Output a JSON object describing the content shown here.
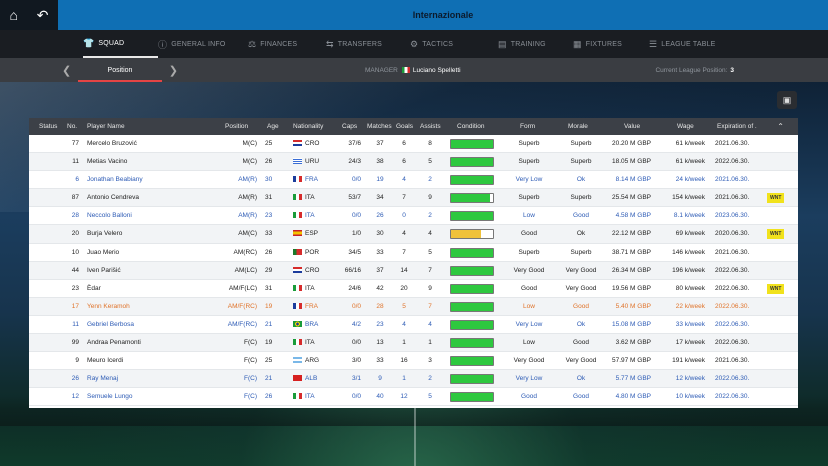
{
  "header": {
    "title": "Internazionale",
    "home_icon": "home-icon",
    "back_icon": "back-icon"
  },
  "tabs": [
    {
      "label": "SQUAD",
      "icon": "shirt-icon",
      "active": true
    },
    {
      "label": "GENERAL INFO",
      "icon": "info-icon"
    },
    {
      "label": "FINANCES",
      "icon": "finances-icon"
    },
    {
      "label": "TRANSFERS",
      "icon": "transfers-icon"
    },
    {
      "label": "TACTICS",
      "icon": "tactics-icon"
    },
    {
      "label": "TRAINING",
      "icon": "training-icon"
    },
    {
      "label": "FIXTURES",
      "icon": "fixtures-icon"
    },
    {
      "label": "LEAGUE TABLE",
      "icon": "league-table-icon"
    }
  ],
  "subbar": {
    "sort_label": "Position",
    "manager_key": "MANAGER",
    "manager_name": "Luciano Spelletti",
    "league_key": "Current League Position:",
    "league_value": "3"
  },
  "columns": [
    "Status",
    "No.",
    "Player Name",
    "Position",
    "Age",
    "Nationality",
    "Caps",
    "Matches",
    "Goals",
    "Assists",
    "Condition",
    "Form",
    "Morale",
    "Value",
    "Wage",
    "Expiration of ."
  ],
  "players": [
    {
      "no": "77",
      "name": "Mercelo Bruzović",
      "pos": "M(C)",
      "age": "25",
      "nat": "CRO",
      "caps": "37/6",
      "matches": "37",
      "goals": "6",
      "assists": "8",
      "cond": 1.0,
      "form": "Superb",
      "morale": "Superb",
      "value": "20.20 M GBP",
      "wage": "61 k/week",
      "exp": "2021.06.30.",
      "style": "normal",
      "badge": ""
    },
    {
      "no": "11",
      "name": "Metias Vacino",
      "pos": "M(C)",
      "age": "26",
      "nat": "URU",
      "caps": "24/3",
      "matches": "38",
      "goals": "6",
      "assists": "5",
      "cond": 1.0,
      "form": "Superb",
      "morale": "Superb",
      "value": "18.05 M GBP",
      "wage": "61 k/week",
      "exp": "2022.06.30.",
      "style": "normal",
      "badge": ""
    },
    {
      "no": "6",
      "name": "Jonathan Beabiany",
      "pos": "AM(R)",
      "age": "30",
      "nat": "FRA",
      "caps": "0/0",
      "matches": "19",
      "goals": "4",
      "assists": "2",
      "cond": 1.0,
      "form": "Very Low",
      "morale": "Ok",
      "value": "8.14 M GBP",
      "wage": "24 k/week",
      "exp": "2021.06.30.",
      "style": "blue",
      "badge": ""
    },
    {
      "no": "87",
      "name": "Antonio Cendreva",
      "pos": "AM(R)",
      "age": "31",
      "nat": "ITA",
      "caps": "53/7",
      "matches": "34",
      "goals": "7",
      "assists": "9",
      "cond": 0.92,
      "form": "Superb",
      "morale": "Superb",
      "value": "25.54 M GBP",
      "wage": "154 k/week",
      "exp": "2021.06.30.",
      "style": "normal",
      "badge": "WNT"
    },
    {
      "no": "28",
      "name": "Neccolo Balloni",
      "pos": "AM(R)",
      "age": "23",
      "nat": "ITA",
      "caps": "0/0",
      "matches": "26",
      "goals": "0",
      "assists": "2",
      "cond": 1.0,
      "form": "Low",
      "morale": "Good",
      "value": "4.58 M GBP",
      "wage": "8.1 k/week",
      "exp": "2023.06.30.",
      "style": "blue",
      "badge": ""
    },
    {
      "no": "20",
      "name": "Burja Velero",
      "pos": "AM(C)",
      "age": "33",
      "nat": "ESP",
      "caps": "1/0",
      "matches": "30",
      "goals": "4",
      "assists": "4",
      "cond": 0.72,
      "form": "Good",
      "morale": "Ok",
      "value": "22.12 M GBP",
      "wage": "69 k/week",
      "exp": "2020.06.30.",
      "style": "normal",
      "badge": "WNT"
    },
    {
      "no": "10",
      "name": "Juao Merio",
      "pos": "AM(RC)",
      "age": "26",
      "nat": "POR",
      "caps": "34/5",
      "matches": "33",
      "goals": "7",
      "assists": "5",
      "cond": 1.0,
      "form": "Superb",
      "morale": "Superb",
      "value": "38.71 M GBP",
      "wage": "146 k/week",
      "exp": "2021.06.30.",
      "style": "normal",
      "badge": ""
    },
    {
      "no": "44",
      "name": "Iven Parišić",
      "pos": "AM(LC)",
      "age": "29",
      "nat": "CRO",
      "caps": "66/16",
      "matches": "37",
      "goals": "14",
      "assists": "7",
      "cond": 1.0,
      "form": "Very Good",
      "morale": "Very Good",
      "value": "26.34 M GBP",
      "wage": "196 k/week",
      "exp": "2022.06.30.",
      "style": "normal",
      "badge": ""
    },
    {
      "no": "23",
      "name": "Èdar",
      "pos": "AM/F(LC)",
      "age": "31",
      "nat": "ITA",
      "caps": "24/6",
      "matches": "42",
      "goals": "20",
      "assists": "9",
      "cond": 1.0,
      "form": "Good",
      "morale": "Very Good",
      "value": "19.56 M GBP",
      "wage": "80 k/week",
      "exp": "2022.06.30.",
      "style": "normal",
      "badge": "WNT"
    },
    {
      "no": "17",
      "name": "Yenn Keramoh",
      "pos": "AM/F(RC)",
      "age": "19",
      "nat": "FRA",
      "caps": "0/0",
      "matches": "28",
      "goals": "5",
      "assists": "7",
      "cond": 1.0,
      "form": "Low",
      "morale": "Good",
      "value": "5.40 M GBP",
      "wage": "22 k/week",
      "exp": "2022.06.30.",
      "style": "orange",
      "badge": ""
    },
    {
      "no": "11",
      "name": "Gebriel Berbosa",
      "pos": "AM/F(RC)",
      "age": "21",
      "nat": "BRA",
      "caps": "4/2",
      "matches": "23",
      "goals": "4",
      "assists": "4",
      "cond": 1.0,
      "form": "Very Low",
      "morale": "Ok",
      "value": "15.08 M GBP",
      "wage": "33 k/week",
      "exp": "2022.06.30.",
      "style": "blue",
      "badge": ""
    },
    {
      "no": "99",
      "name": "Andraa Penamonti",
      "pos": "F(C)",
      "age": "19",
      "nat": "ITA",
      "caps": "0/0",
      "matches": "13",
      "goals": "1",
      "assists": "1",
      "cond": 1.0,
      "form": "Low",
      "morale": "Good",
      "value": "3.62 M GBP",
      "wage": "17 k/week",
      "exp": "2022.06.30.",
      "style": "normal",
      "badge": ""
    },
    {
      "no": "9",
      "name": "Meuro Icerdi",
      "pos": "F(C)",
      "age": "25",
      "nat": "ARG",
      "caps": "3/0",
      "matches": "33",
      "goals": "16",
      "assists": "3",
      "cond": 1.0,
      "form": "Very Good",
      "morale": "Very Good",
      "value": "57.97 M GBP",
      "wage": "191 k/week",
      "exp": "2021.06.30.",
      "style": "normal",
      "badge": ""
    },
    {
      "no": "26",
      "name": "Ray Menaj",
      "pos": "F(C)",
      "age": "21",
      "nat": "ALB",
      "caps": "3/1",
      "matches": "9",
      "goals": "1",
      "assists": "2",
      "cond": 1.0,
      "form": "Very Low",
      "morale": "Ok",
      "value": "5.77 M GBP",
      "wage": "12 k/week",
      "exp": "2022.06.30.",
      "style": "blue",
      "badge": ""
    },
    {
      "no": "12",
      "name": "Semuele Lungo",
      "pos": "F(C)",
      "age": "26",
      "nat": "ITA",
      "caps": "0/0",
      "matches": "40",
      "goals": "12",
      "assists": "5",
      "cond": 1.0,
      "form": "Good",
      "morale": "Good",
      "value": "4.80 M GBP",
      "wage": "10 k/week",
      "exp": "2022.06.30.",
      "style": "blue",
      "badge": ""
    }
  ],
  "colors": {
    "accent": "#0f6fb4",
    "condition_full": "#2ec83f",
    "condition_mid": "#f0c23a",
    "blue_text": "#2d5bb5",
    "orange_text": "#e0732a",
    "badge": "#f1e21c"
  }
}
